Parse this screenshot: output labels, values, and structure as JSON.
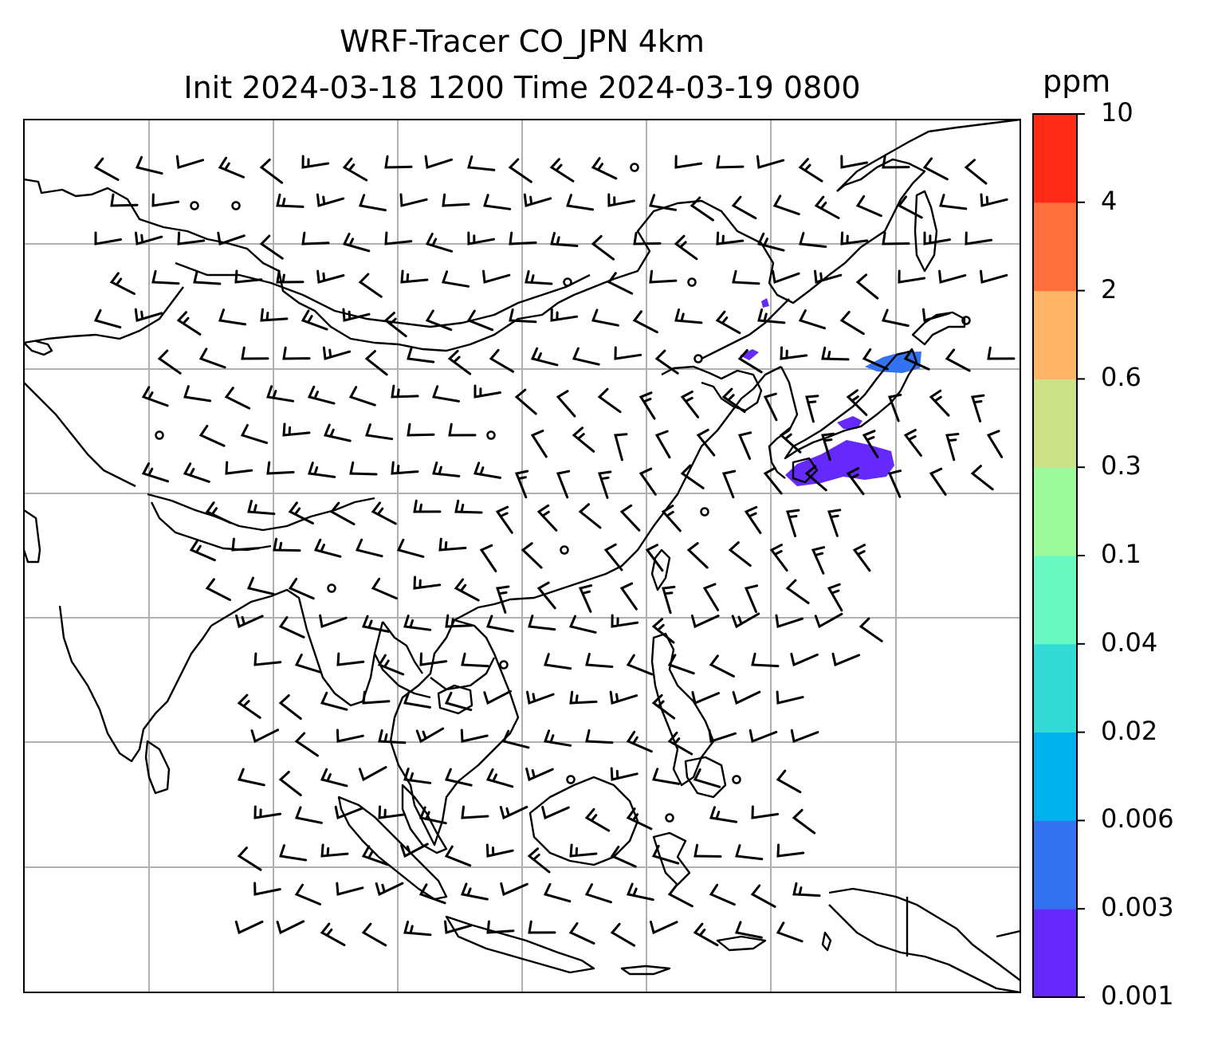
{
  "title": {
    "line1": "WRF-Tracer CO_JPN 4km",
    "line2": "Init 2024-03-18 1200 Time 2024-03-19 0800"
  },
  "colorbar": {
    "unit": "ppm",
    "ticks": [
      "0.001",
      "0.003",
      "0.006",
      "0.02",
      "0.04",
      "0.1",
      "0.3",
      "0.6",
      "2",
      "4",
      "10"
    ],
    "colors": [
      "#6529fb",
      "#3373f2",
      "#00b1ec",
      "#33dbd7",
      "#69f8c1",
      "#9cfa9c",
      "#cde186",
      "#fdb466",
      "#fe6f3c",
      "#ff2b17"
    ]
  },
  "map": {
    "frame_color": "#000000",
    "grid_color": "#b0b0b0",
    "coastline_color": "#000000",
    "wind_barb_color": "#000000",
    "tracer_plume_color": "#6529fb"
  }
}
